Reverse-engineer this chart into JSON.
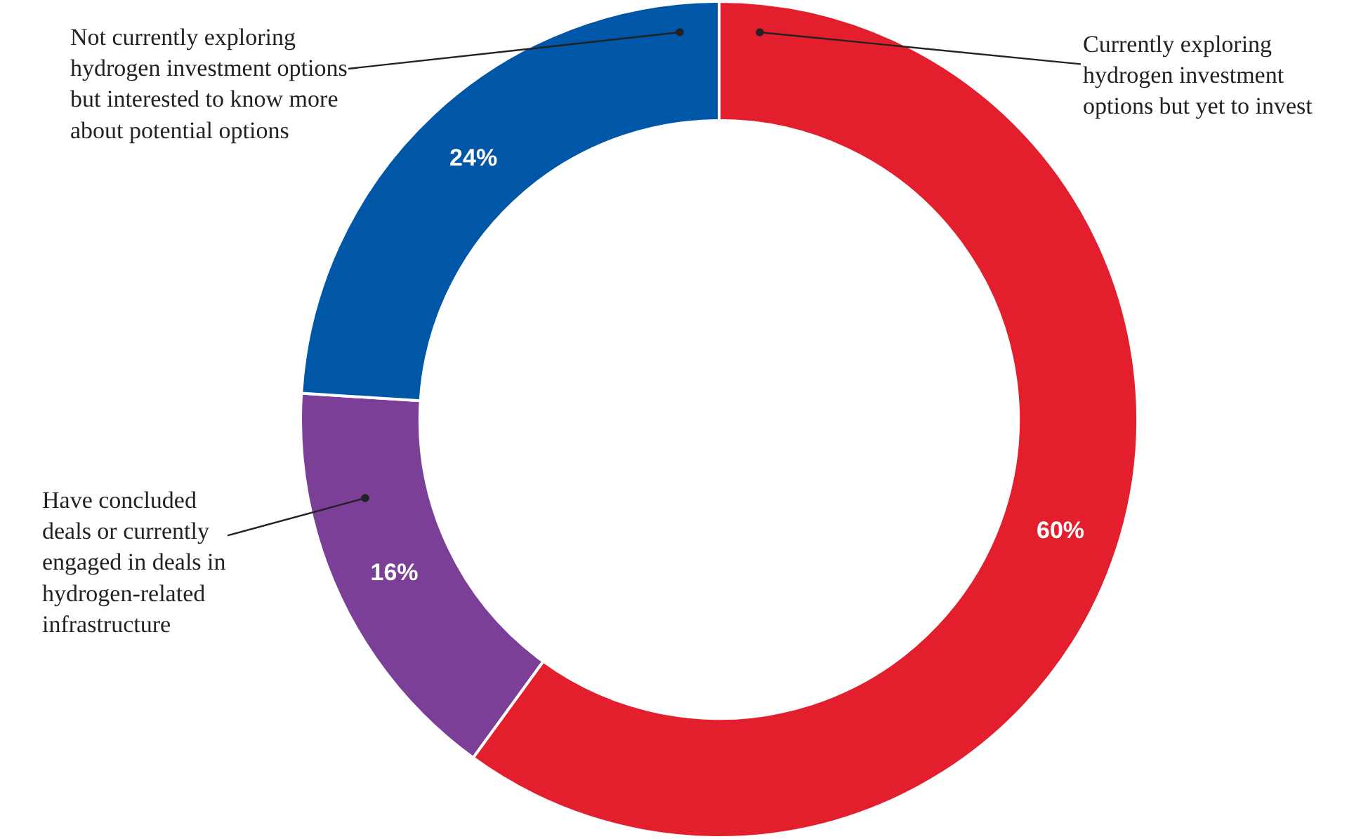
{
  "chart_data": {
    "type": "donut",
    "categories": [
      "Currently exploring hydrogen investment options but yet to invest",
      "Have concluded deals or currently engaged in deals in hydrogen-related infrastructure",
      "Not currently exploring hydrogen investment options but interested to know more about potential options"
    ],
    "values": [
      60,
      16,
      24
    ],
    "value_labels": [
      "60%",
      "16%",
      "24%"
    ],
    "colors": [
      "#e31e2d",
      "#7b3f98",
      "#0057a8"
    ]
  }
}
